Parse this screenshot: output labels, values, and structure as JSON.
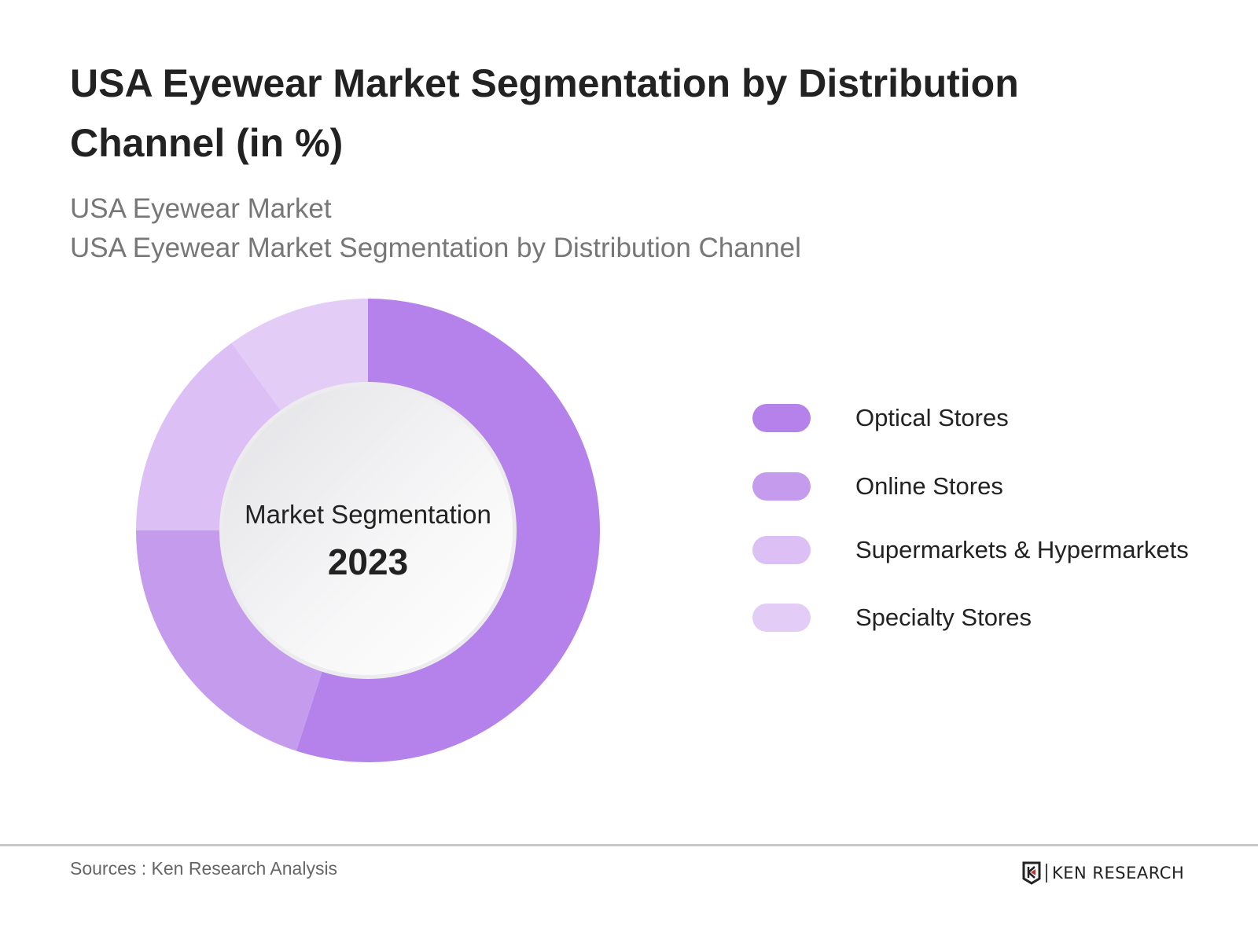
{
  "title": "USA Eyewear Market Segmentation by Distribution Channel (in %)",
  "subtitle_1": "USA Eyewear Market",
  "subtitle_2": "USA Eyewear Market Segmentation by Distribution Channel",
  "chart_data": {
    "type": "pie",
    "variant": "donut",
    "title": "USA Eyewear Market Segmentation by Distribution Channel (in %)",
    "center_label": "Market Segmentation",
    "center_year": "2023",
    "categories": [
      "Optical Stores",
      "Online Stores",
      "Supermarkets & Hypermarkets",
      "Specialty Stores"
    ],
    "values": [
      55,
      20,
      15,
      10
    ],
    "colors": [
      "#b482ea",
      "#c59bed",
      "#dcc0f5",
      "#e3cdf6"
    ],
    "legend_placement": "right"
  },
  "footer": {
    "sources": "Sources : Ken Research Analysis",
    "logo_text": "KEN RESEARCH"
  }
}
